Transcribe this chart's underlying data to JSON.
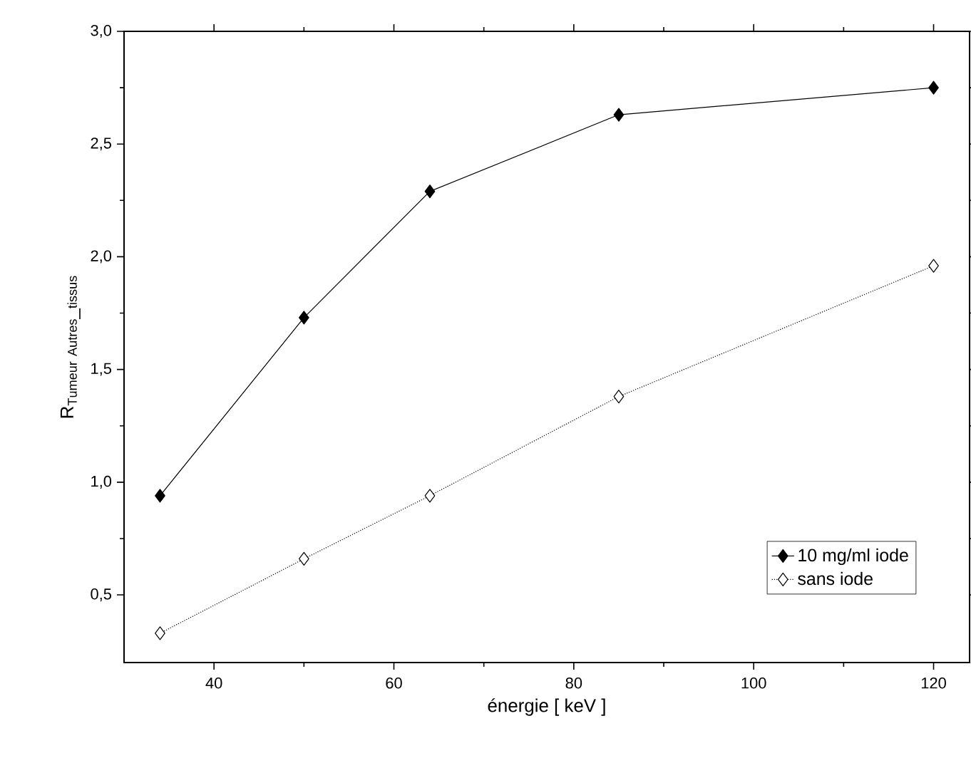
{
  "chart_data": {
    "type": "line",
    "xlabel": "énergie  [ keV ]",
    "ylabel": "\\mathrm{R}_{\\mathrm{Tumeur\\ Autres\\_tissus}}",
    "x": [
      34,
      50,
      64,
      85,
      120
    ],
    "series": [
      {
        "name": "10 mg/ml iode",
        "color": "#000000",
        "line_style": "solid",
        "values": [
          0.94,
          1.73,
          2.29,
          2.63,
          2.75
        ]
      },
      {
        "name": "sans iode",
        "color": "#000000",
        "line_style": "dotted",
        "values": [
          0.33,
          0.66,
          0.94,
          1.38,
          1.96
        ]
      }
    ],
    "xlim": [
      30,
      124
    ],
    "ylim": [
      0.2,
      3.0
    ],
    "xticks": [
      40,
      60,
      80,
      100,
      120
    ],
    "yticks": [
      {
        "value": 0.5,
        "label": "0,5"
      },
      {
        "value": 1.0,
        "label": "1,0"
      },
      {
        "value": 1.5,
        "label": "1,5"
      },
      {
        "value": 2.0,
        "label": "2,0"
      },
      {
        "value": 2.5,
        "label": "2,5"
      },
      {
        "value": 3.0,
        "label": "3,0"
      }
    ],
    "marker": "diamond",
    "grid": false,
    "legend": "bottom right"
  }
}
